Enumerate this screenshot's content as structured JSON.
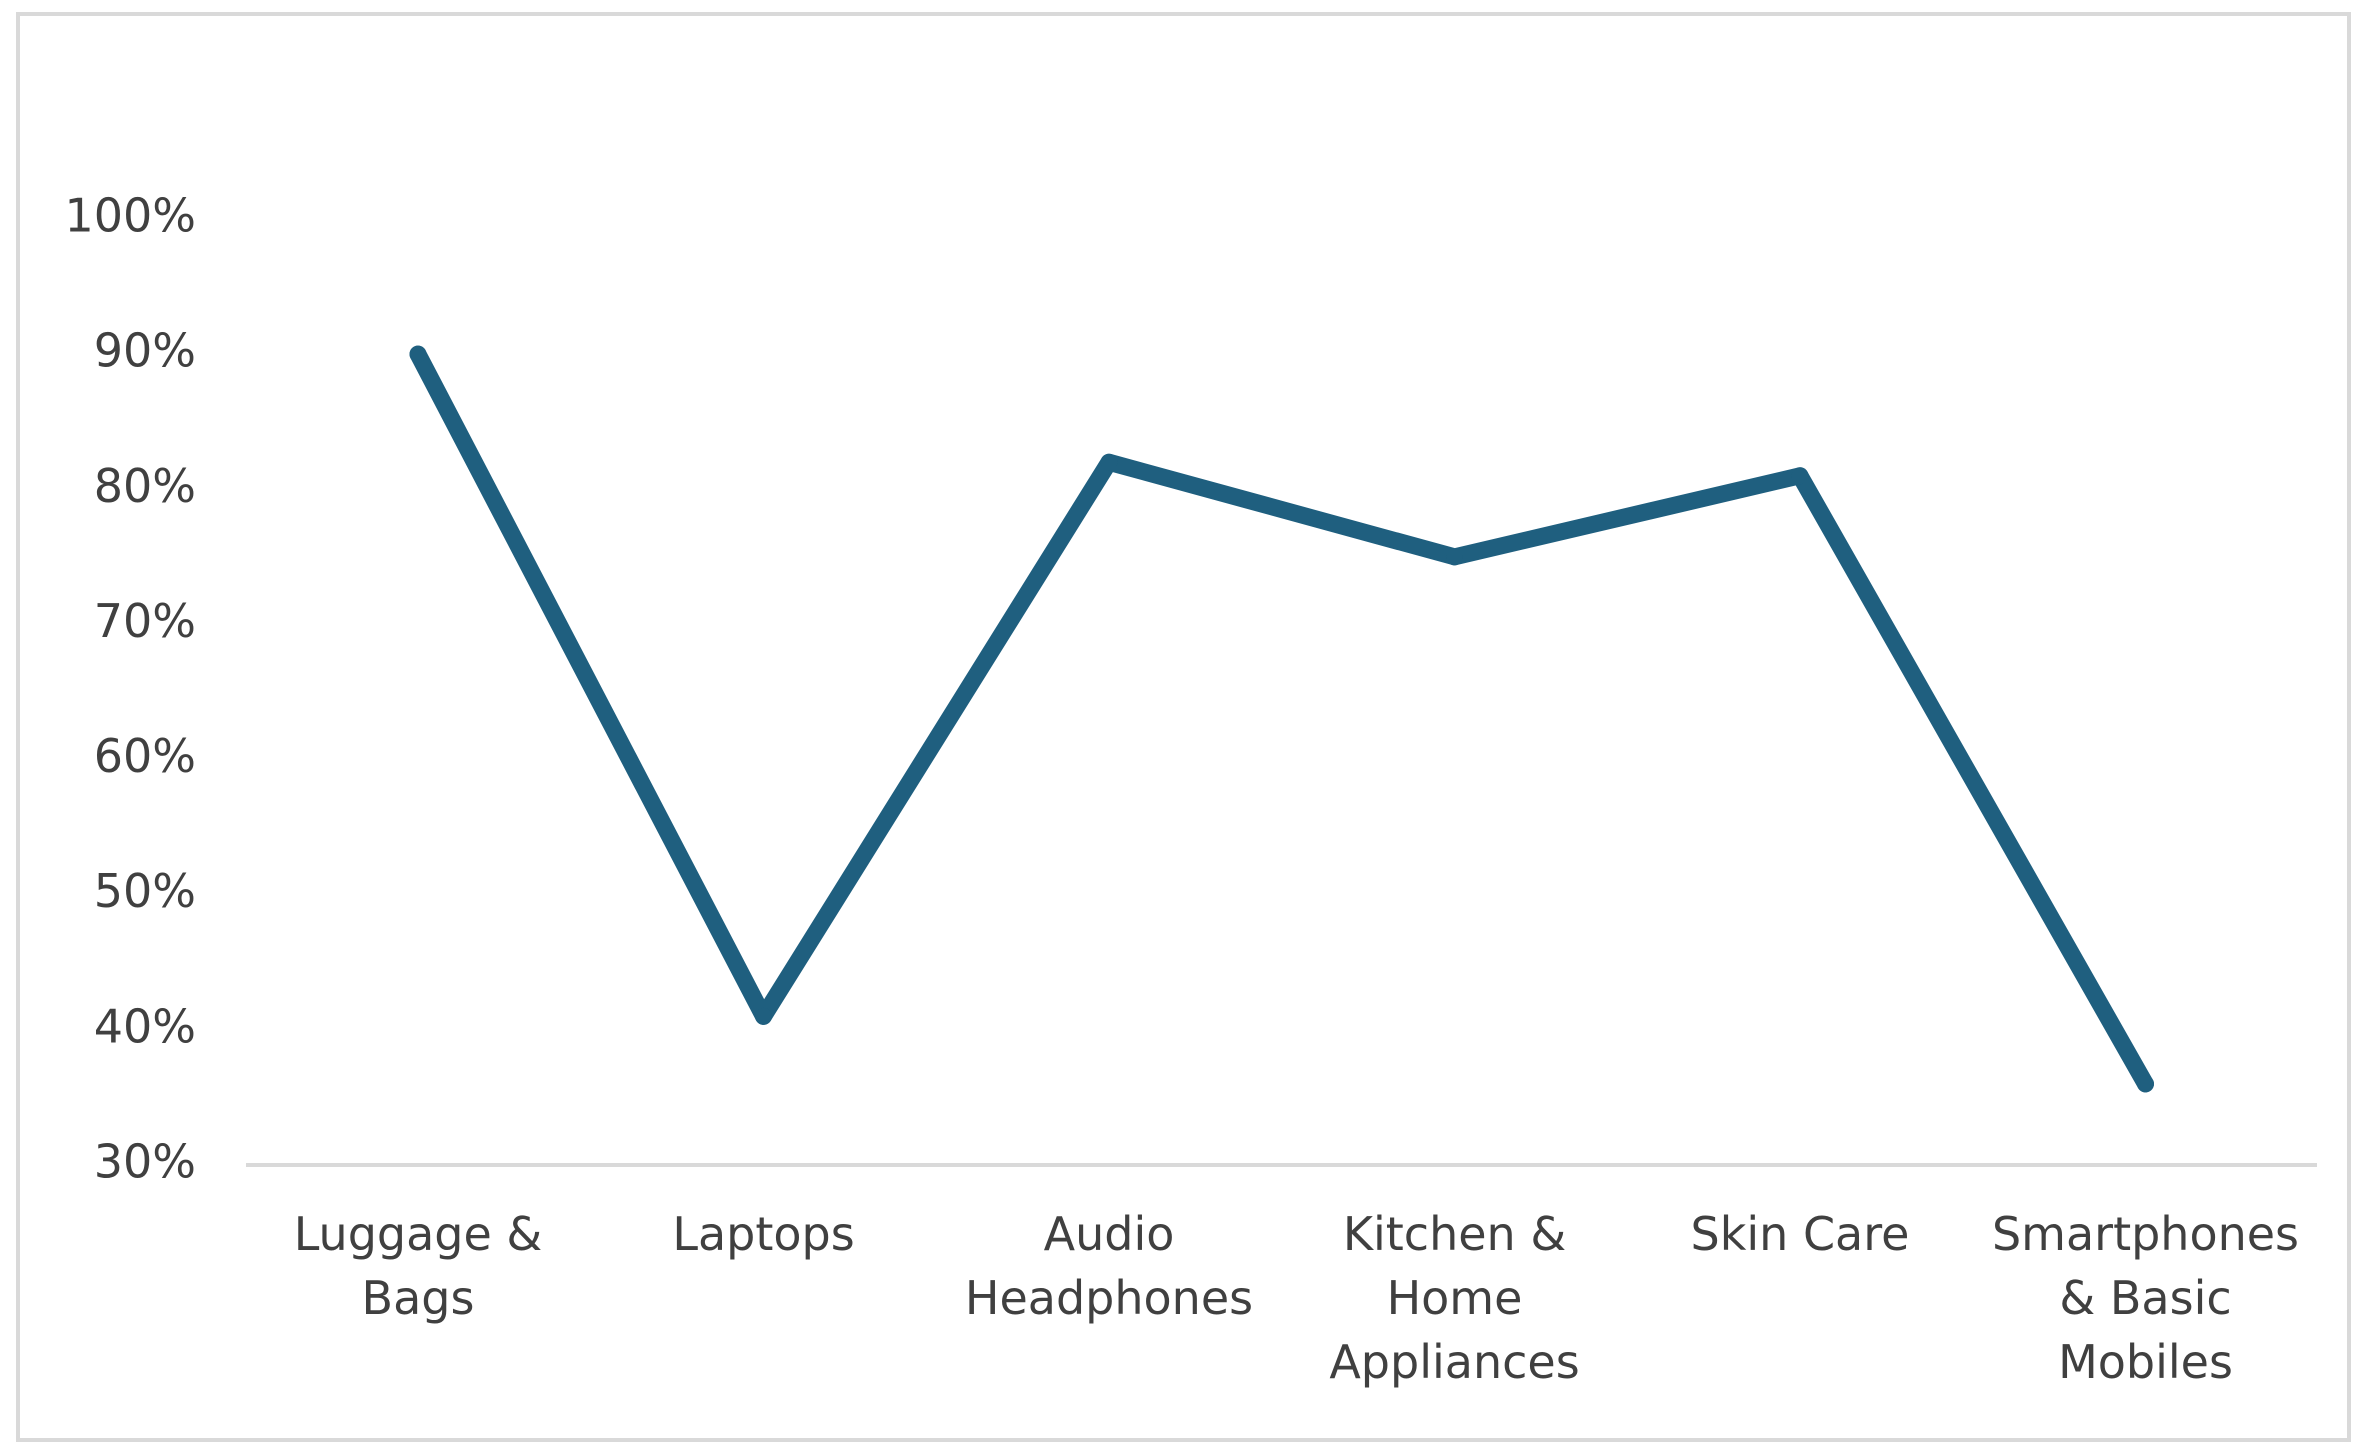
{
  "chart_data": {
    "type": "line",
    "categories": [
      [
        "Luggage &",
        "Bags"
      ],
      [
        "Laptops"
      ],
      [
        "Audio",
        "Headphones"
      ],
      [
        "Kitchen &",
        "Home",
        "Appliances"
      ],
      [
        "Skin Care"
      ],
      [
        "Smartphones",
        "& Basic",
        "Mobiles"
      ]
    ],
    "series": [
      {
        "values": [
          0.9,
          0.41,
          0.82,
          0.75,
          0.81,
          0.36
        ],
        "color": "#1f5f7f"
      }
    ],
    "yticks": [
      "100%",
      "90%",
      "80%",
      "70%",
      "60%",
      "50%",
      "40%",
      "30%"
    ],
    "ylim": [
      0.3,
      1.0
    ],
    "grid": false,
    "axis_color": "#d9d9d9",
    "text_color": "#404040"
  }
}
